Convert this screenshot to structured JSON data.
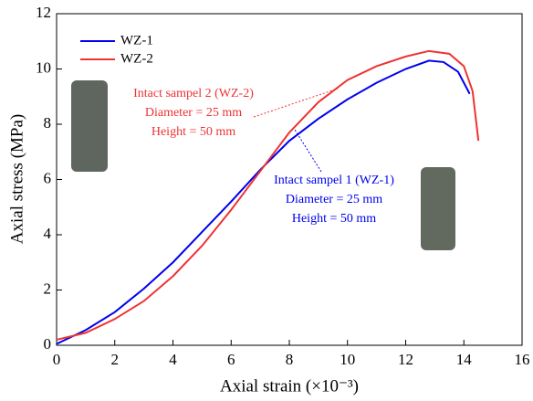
{
  "chart_data": {
    "type": "line",
    "xlabel": "Axial strain (×10⁻³)",
    "ylabel": "Axial stress (MPa)",
    "xlim": [
      0,
      16
    ],
    "xticks": [
      0,
      2,
      4,
      6,
      8,
      10,
      12,
      14,
      16
    ],
    "ylim": [
      0,
      12
    ],
    "yticks": [
      0,
      2,
      4,
      6,
      8,
      10,
      12
    ],
    "legend": "upper left",
    "series": [
      {
        "name": "WZ-1",
        "color": "#0000ee",
        "x": [
          0,
          1,
          2,
          3,
          4,
          5,
          6,
          7,
          8,
          9,
          10,
          11,
          12,
          12.8,
          13.3,
          13.8,
          14.2
        ],
        "values": [
          0.05,
          0.55,
          1.2,
          2.05,
          3.0,
          4.1,
          5.2,
          6.35,
          7.4,
          8.2,
          8.9,
          9.5,
          10.0,
          10.3,
          10.25,
          9.9,
          9.1
        ]
      },
      {
        "name": "WZ-2",
        "color": "#ee3333",
        "x": [
          0,
          1,
          2,
          3,
          4,
          5,
          6,
          7,
          8,
          9,
          10,
          11,
          12,
          12.8,
          13.5,
          14,
          14.3,
          14.5
        ],
        "values": [
          0.2,
          0.45,
          0.95,
          1.6,
          2.5,
          3.6,
          4.9,
          6.3,
          7.7,
          8.8,
          9.6,
          10.1,
          10.45,
          10.65,
          10.55,
          10.1,
          9.2,
          7.4
        ]
      }
    ],
    "annotations": [
      {
        "color": "#ee3333",
        "lines": [
          "Intact sampel 2 (WZ-2)",
          "Diameter = 25 mm",
          "Height = 50 mm"
        ]
      },
      {
        "color": "#0000ee",
        "lines": [
          "Intact sampel 1 (WZ-1)",
          "Diameter = 25 mm",
          "Height = 50 mm"
        ]
      }
    ]
  }
}
